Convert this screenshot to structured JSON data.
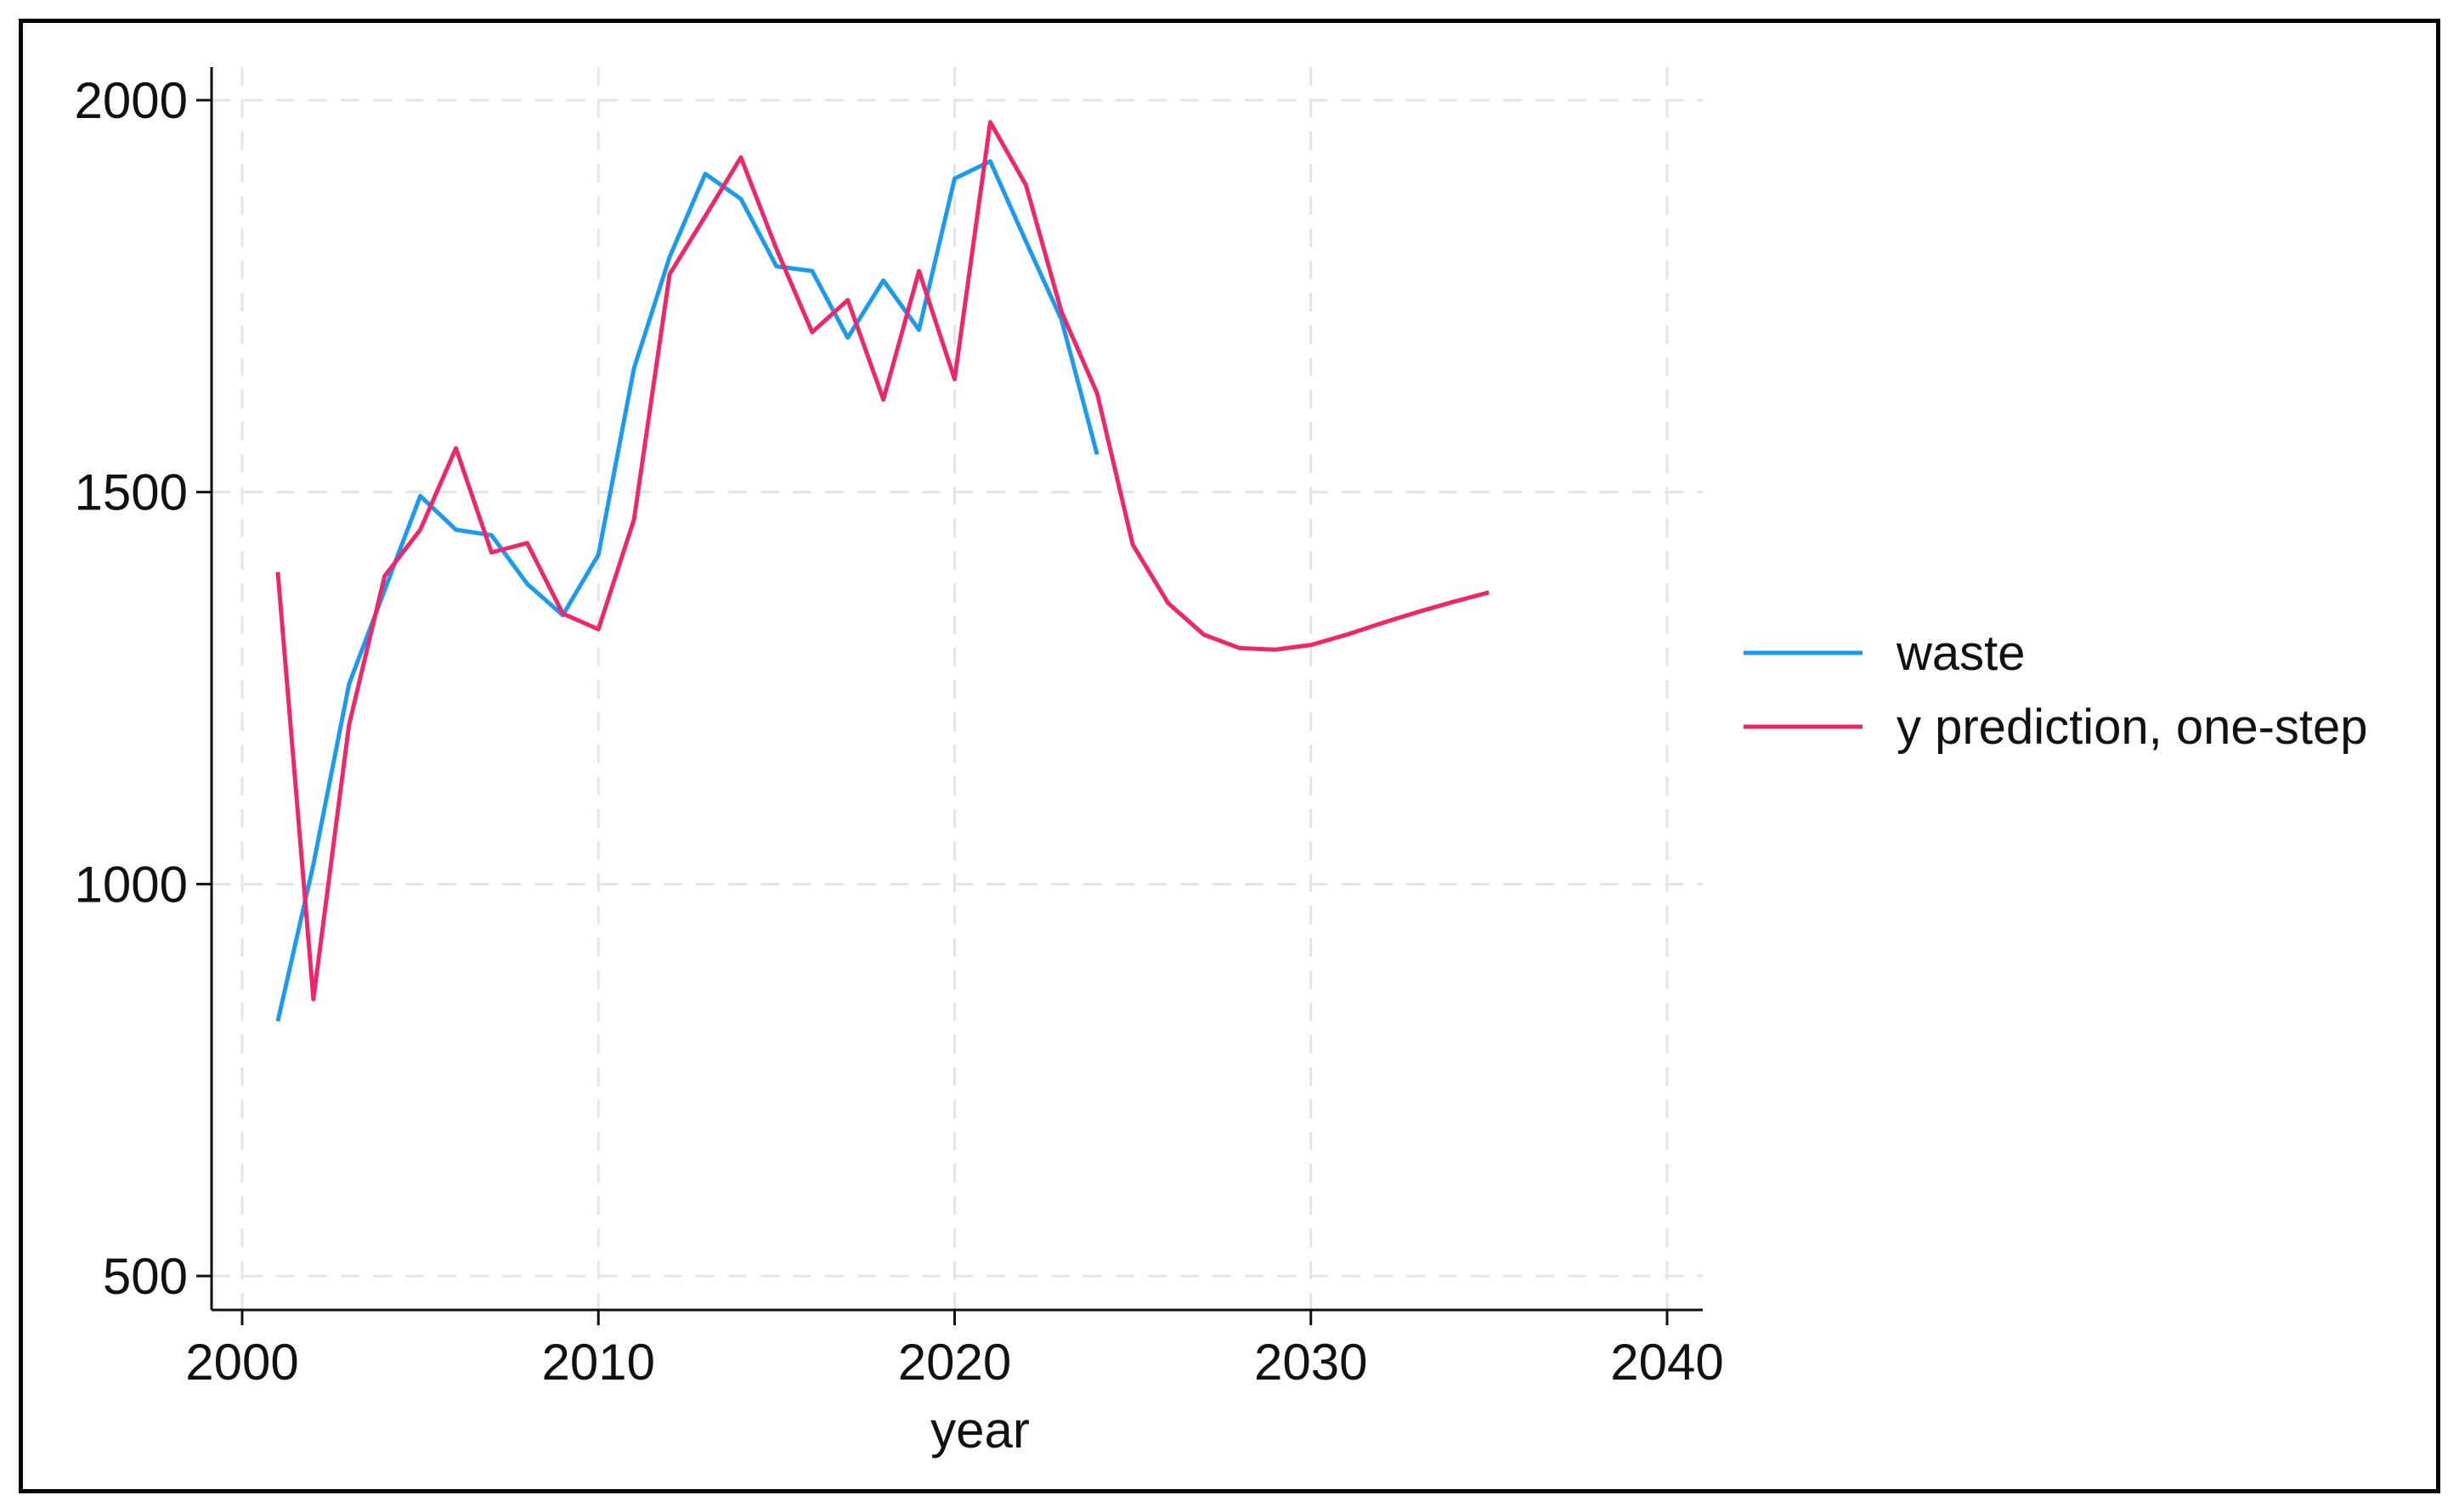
{
  "chart_data": {
    "type": "line",
    "title": "",
    "xlabel": "year",
    "ylabel": "",
    "xlim": [
      2000,
      2040
    ],
    "ylim": [
      500,
      2000
    ],
    "x_ticks": [
      2000,
      2010,
      2020,
      2030,
      2040
    ],
    "y_ticks": [
      500,
      1000,
      1500,
      2000
    ],
    "x_tick_labels": [
      "2000",
      "2010",
      "2020",
      "2030",
      "2040"
    ],
    "y_tick_labels": [
      "500",
      "1000",
      "1500",
      "2000"
    ],
    "grid": true,
    "legend_position": "right",
    "series": [
      {
        "name": "waste",
        "color": "#1a9af0",
        "x": [
          2001,
          2002,
          2003,
          2004,
          2005,
          2006,
          2007,
          2008,
          2009,
          2010,
          2011,
          2012,
          2013,
          2014,
          2015,
          2016,
          2017,
          2018,
          2019,
          2020,
          2021,
          2022,
          2023,
          2024
        ],
        "values": [
          825,
          1025,
          1255,
          1375,
          1495,
          1452,
          1445,
          1383,
          1343,
          1420,
          1658,
          1800,
          1906,
          1874,
          1788,
          1782,
          1697,
          1770,
          1707,
          1900,
          1922,
          1820,
          1720,
          1548
        ]
      },
      {
        "name": "y prediction, one-step",
        "color": "#f0266a",
        "x": [
          2001,
          2002,
          2003,
          2004,
          2005,
          2006,
          2007,
          2008,
          2009,
          2010,
          2011,
          2012,
          2013,
          2014,
          2015,
          2016,
          2017,
          2018,
          2019,
          2020,
          2021,
          2022,
          2023,
          2024,
          2025,
          2026,
          2027,
          2028,
          2029,
          2030,
          2031,
          2032,
          2033,
          2034,
          2035
        ],
        "values": [
          1398,
          853,
          1203,
          1393,
          1452,
          1556,
          1423,
          1435,
          1345,
          1325,
          1465,
          1778,
          1852,
          1927,
          1810,
          1704,
          1745,
          1618,
          1782,
          1644,
          1972,
          1892,
          1730,
          1626,
          1433,
          1358,
          1318,
          1301,
          1299,
          1305,
          1318,
          1333,
          1347,
          1360,
          1372
        ]
      }
    ]
  }
}
